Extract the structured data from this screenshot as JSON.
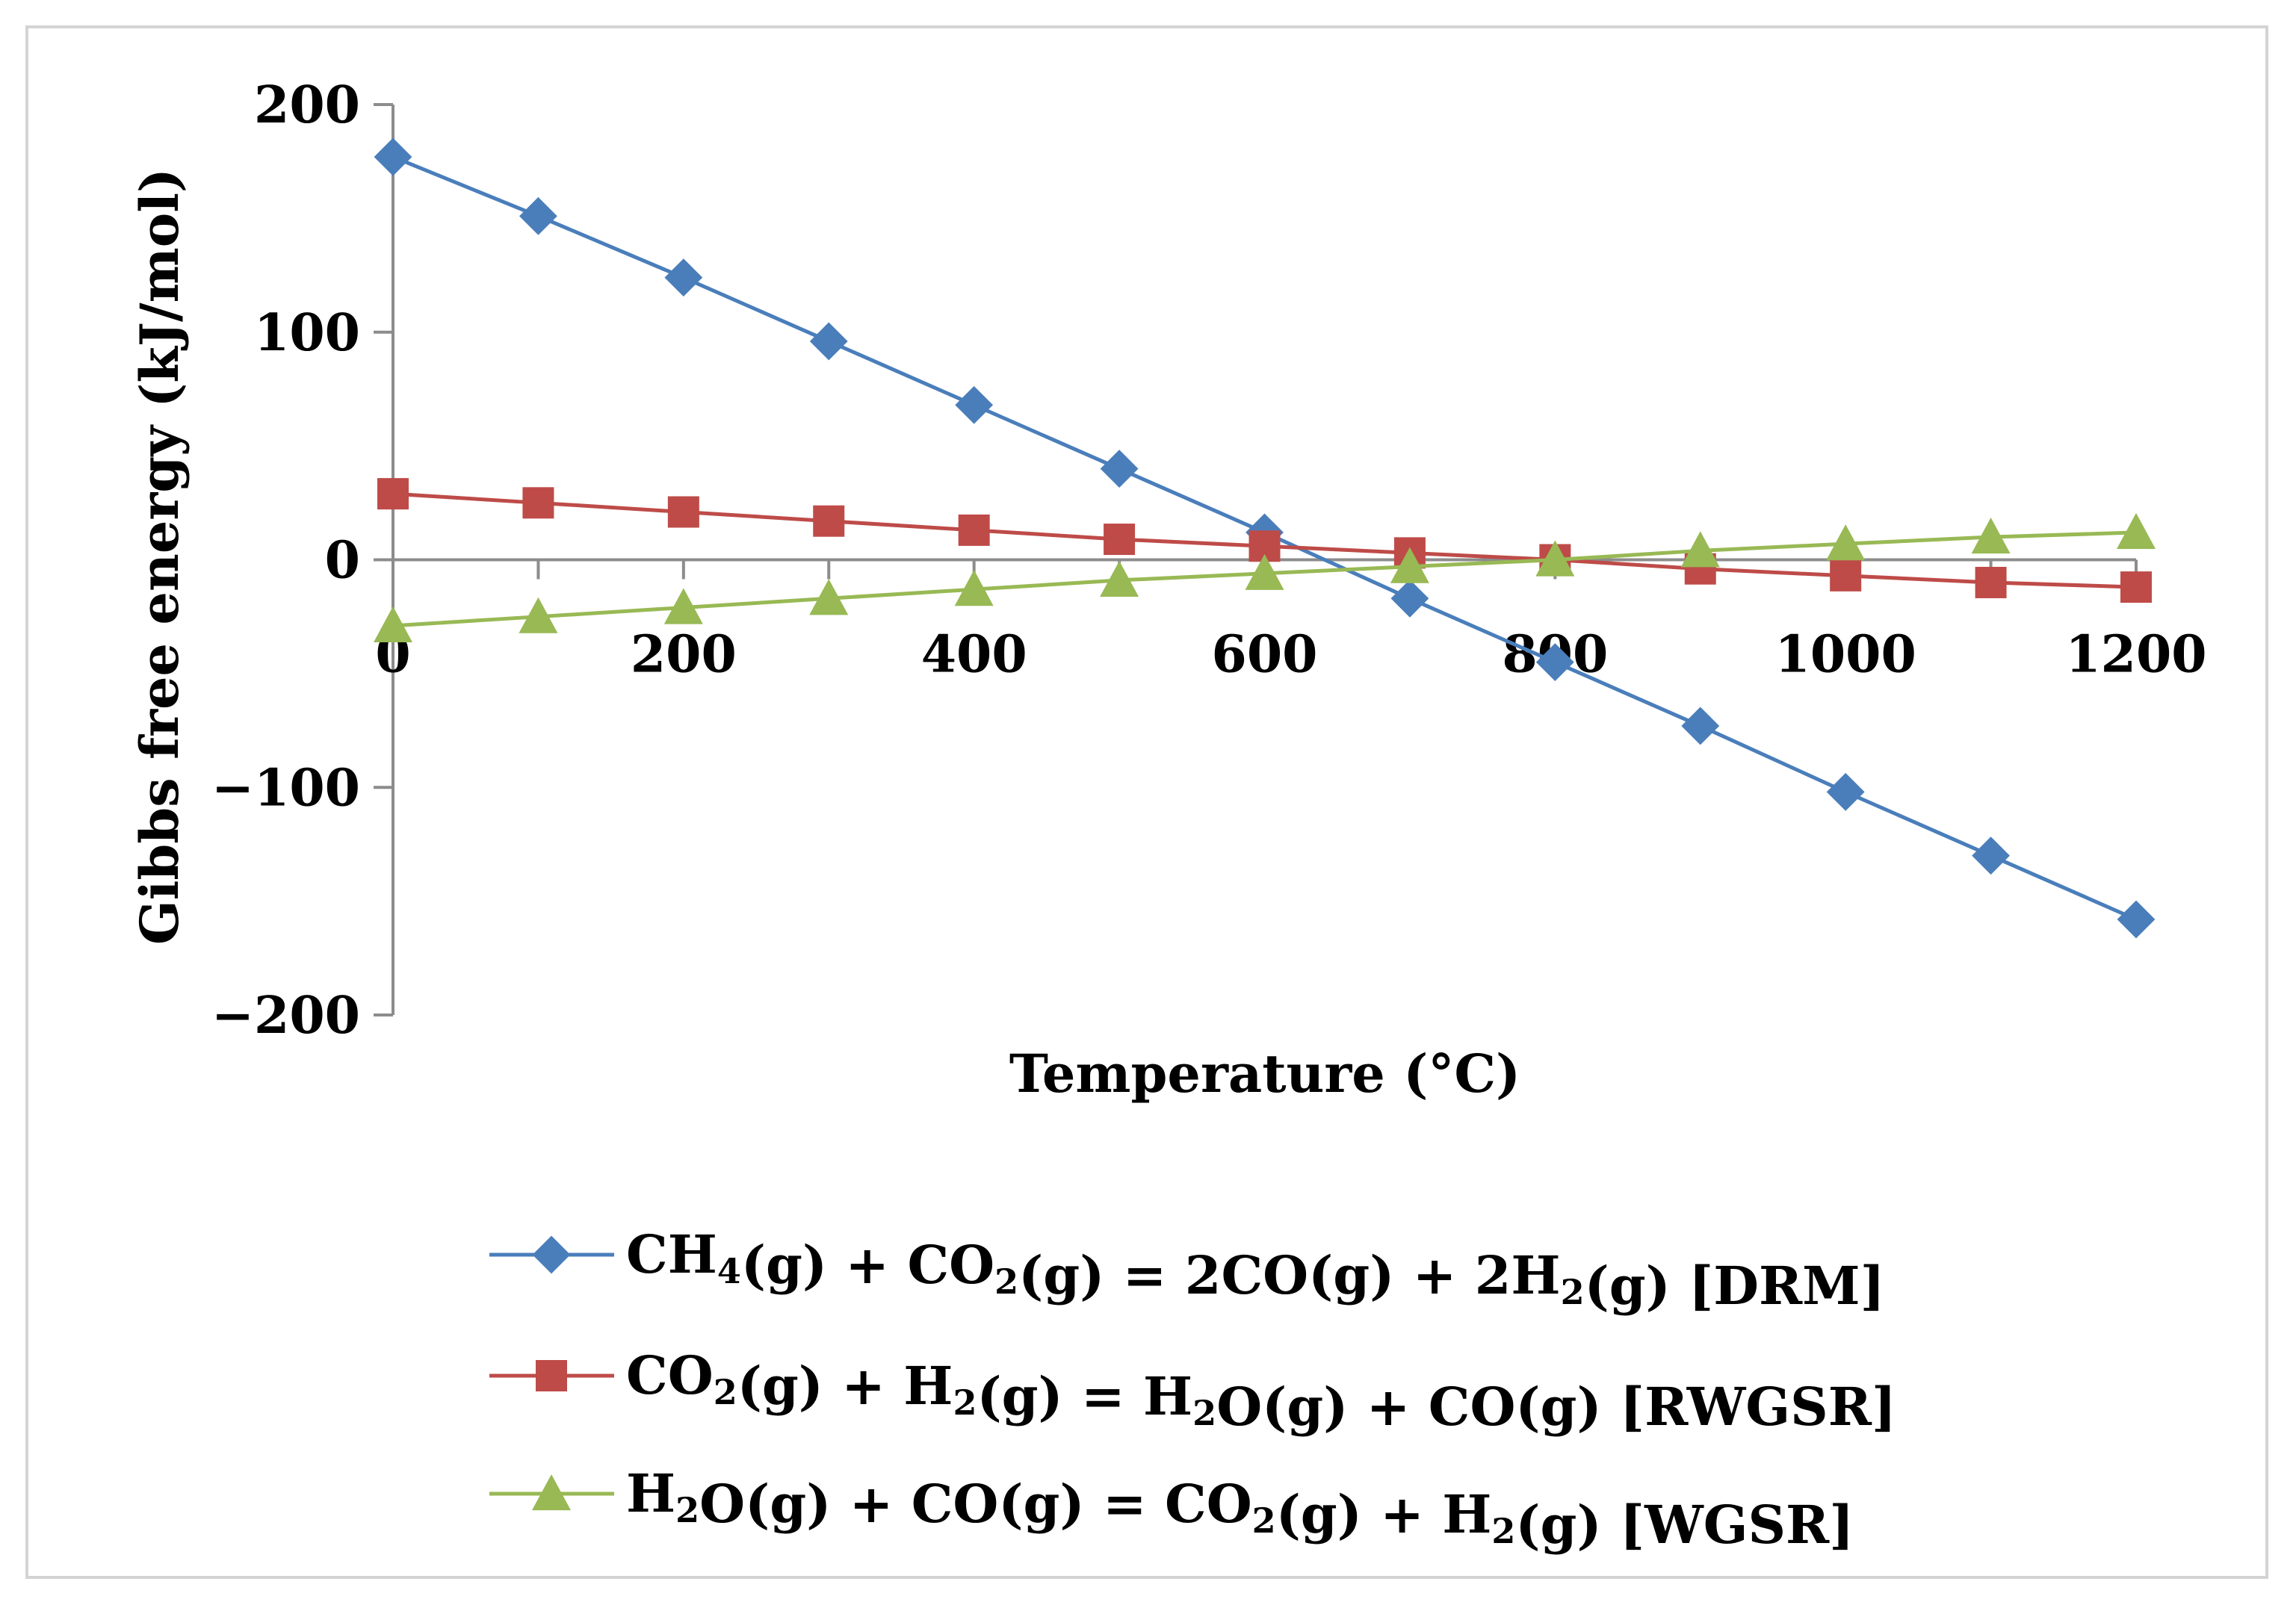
{
  "chart_data": {
    "type": "line",
    "title": "",
    "xlabel": "Temperature (°C)",
    "ylabel": "Gibbs free energy (kJ/mol)",
    "xlim": [
      0,
      1200
    ],
    "ylim": [
      -200,
      200
    ],
    "xticks": [
      "0",
      "200",
      "400",
      "600",
      "800",
      "1000",
      "1200"
    ],
    "yticks": [
      "200",
      "100",
      "0",
      "−100",
      "−200"
    ],
    "x": [
      0,
      100,
      200,
      300,
      400,
      500,
      600,
      700,
      800,
      900,
      1000,
      1100,
      1200
    ],
    "legend_position": "bottom",
    "series": [
      {
        "name": "DRM",
        "legend_parts": [
          [
            "CH",
            ""
          ],
          [
            "4",
            "sub"
          ],
          [
            "(g) + CO",
            ""
          ],
          [
            "2",
            "sub"
          ],
          [
            "(g) = 2CO(g) + 2H",
            ""
          ],
          [
            "2",
            "sub"
          ],
          [
            "(g) [DRM]",
            ""
          ]
        ],
        "legend_label": "CH4(g) + CO2(g) = 2CO(g) + 2H2(g) [DRM]",
        "color": "#4a7ebb",
        "marker": "diamond",
        "values": [
          177,
          151,
          124,
          96,
          68,
          40,
          12,
          -17,
          -45,
          -73,
          -102,
          -130,
          -158
        ]
      },
      {
        "name": "RWGSR",
        "legend_parts": [
          [
            "CO",
            ""
          ],
          [
            "2",
            "sub"
          ],
          [
            "(g) + H",
            ""
          ],
          [
            "2",
            "sub"
          ],
          [
            "(g) = H",
            ""
          ],
          [
            "2",
            "sub"
          ],
          [
            "O(g) + CO(g) [RWGSR]",
            ""
          ]
        ],
        "legend_label": "CO2(g) + H2(g) = H2O(g) + CO(g) [RWGSR]",
        "color": "#be4b48",
        "marker": "square",
        "values": [
          29,
          25,
          21,
          17,
          13,
          9,
          6,
          3,
          0,
          -4,
          -7,
          -10,
          -12
        ]
      },
      {
        "name": "WGSR",
        "legend_parts": [
          [
            "H",
            ""
          ],
          [
            "2",
            "sub"
          ],
          [
            "O(g) + CO(g) = CO",
            ""
          ],
          [
            "2",
            "sub"
          ],
          [
            "(g) + H",
            ""
          ],
          [
            "2",
            "sub"
          ],
          [
            "(g) [WGSR]",
            ""
          ]
        ],
        "legend_label": "H2O(g) + CO(g) = CO2(g) + H2(g) [WGSR]",
        "color": "#98b954",
        "marker": "triangle",
        "values": [
          -29,
          -25,
          -21,
          -17,
          -13,
          -9,
          -6,
          -3,
          0,
          4,
          7,
          10,
          12
        ]
      }
    ]
  }
}
